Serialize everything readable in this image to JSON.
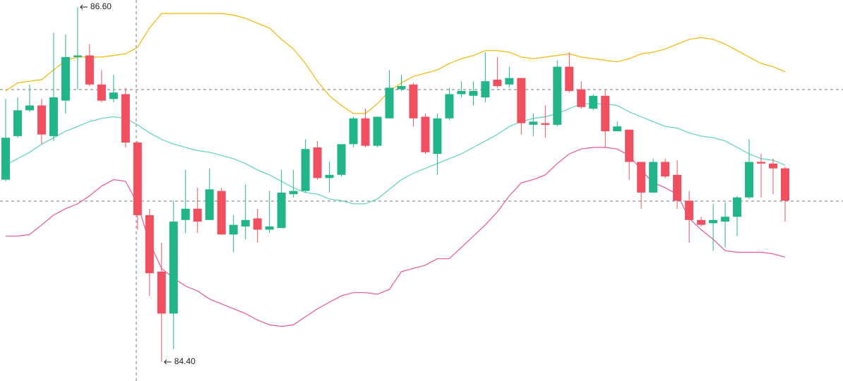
{
  "chart_data": {
    "type": "candlestick",
    "up_color": "#22b58a",
    "down_color": "#ef4f5f",
    "open": [
      85.53,
      85.8,
      85.96,
      85.99,
      85.8,
      86.02,
      86.29,
      86.3,
      86.12,
      86.03,
      86.06,
      85.76,
      85.31,
      84.96,
      84.7,
      85.28,
      85.35,
      85.28,
      85.46,
      85.19,
      85.24,
      85.29,
      85.22,
      85.23,
      85.44,
      85.46,
      85.73,
      85.54,
      85.56,
      85.75,
      85.91,
      85.74,
      85.91,
      86.09,
      86.12,
      85.92,
      85.69,
      85.91,
      86.06,
      86.05,
      86.04,
      86.15,
      86.12,
      86.16,
      85.87,
      85.88,
      85.87,
      86.23,
      86.09,
      85.97,
      86.05,
      85.83,
      85.84,
      85.64,
      85.45,
      85.64,
      85.56,
      85.4,
      85.28,
      85.26,
      85.27,
      85.3,
      85.42,
      85.64,
      85.63,
      85.6
    ],
    "high": [
      86.03,
      86.04,
      86.12,
      86.03,
      86.44,
      86.43,
      86.6,
      86.37,
      86.21,
      86.18,
      86.1,
      85.77,
      85.35,
      85.14,
      85.4,
      85.59,
      85.48,
      85.6,
      85.48,
      85.31,
      85.5,
      85.35,
      85.46,
      85.59,
      85.59,
      85.78,
      85.77,
      85.64,
      85.75,
      85.92,
      85.97,
      85.92,
      86.21,
      86.18,
      86.13,
      85.94,
      85.94,
      86.1,
      86.14,
      86.14,
      86.32,
      86.29,
      86.23,
      86.16,
      85.94,
      85.99,
      86.27,
      86.32,
      86.14,
      86.06,
      86.09,
      85.89,
      85.84,
      85.64,
      85.66,
      85.66,
      85.65,
      85.46,
      85.3,
      85.38,
      85.39,
      85.43,
      85.78,
      85.69,
      85.66,
      85.61
    ],
    "low": [
      85.52,
      85.79,
      85.95,
      85.75,
      85.77,
      85.94,
      86.09,
      86.11,
      86.01,
      86.01,
      85.73,
      85.22,
      84.81,
      84.4,
      84.48,
      85.2,
      85.2,
      85.28,
      85.19,
      85.08,
      85.16,
      85.14,
      85.2,
      85.23,
      85.42,
      85.45,
      85.53,
      85.45,
      85.55,
      85.73,
      85.73,
      85.73,
      85.91,
      86.08,
      85.86,
      85.69,
      85.56,
      85.9,
      86.04,
      85.99,
      86.01,
      86.1,
      86.1,
      85.81,
      85.8,
      85.79,
      85.86,
      86.07,
      85.97,
      85.96,
      85.73,
      85.83,
      85.53,
      85.35,
      85.45,
      85.54,
      85.35,
      85.14,
      85.24,
      85.09,
      85.11,
      85.18,
      85.41,
      85.42,
      85.44,
      85.27
    ],
    "close": [
      85.79,
      85.96,
      85.99,
      85.81,
      86.04,
      86.29,
      86.3,
      86.12,
      86.02,
      86.07,
      85.76,
      85.31,
      84.95,
      84.7,
      85.27,
      85.35,
      85.27,
      85.47,
      85.19,
      85.25,
      85.28,
      85.22,
      85.24,
      85.45,
      85.46,
      85.72,
      85.54,
      85.56,
      85.75,
      85.91,
      85.74,
      85.92,
      86.1,
      86.11,
      85.91,
      85.7,
      85.91,
      86.06,
      86.08,
      86.08,
      86.14,
      86.11,
      86.16,
      85.88,
      85.89,
      85.87,
      86.23,
      86.08,
      85.98,
      86.05,
      85.83,
      85.86,
      85.64,
      85.45,
      85.64,
      85.55,
      85.4,
      85.28,
      85.25,
      85.28,
      85.3,
      85.42,
      85.64,
      85.63,
      85.6,
      85.4
    ],
    "lines": [
      {
        "color": "#f2b705",
        "values": [
          86.08,
          86.13,
          86.14,
          86.15,
          86.21,
          86.27,
          86.29,
          86.29,
          86.29,
          86.3,
          86.31,
          86.35,
          86.47,
          86.56,
          86.56,
          86.56,
          86.56,
          86.56,
          86.56,
          86.55,
          86.53,
          86.5,
          86.47,
          86.4,
          86.34,
          86.25,
          86.14,
          86.05,
          85.99,
          85.94,
          85.94,
          86.0,
          86.08,
          86.13,
          86.17,
          86.19,
          86.21,
          86.25,
          86.28,
          86.3,
          86.33,
          86.33,
          86.32,
          86.29,
          86.28,
          86.29,
          86.3,
          86.31,
          86.29,
          86.28,
          86.27,
          86.26,
          86.28,
          86.31,
          86.32,
          86.34,
          86.37,
          86.4,
          86.41,
          86.4,
          86.37,
          86.33,
          86.29,
          86.25,
          86.23,
          86.2
        ]
      },
      {
        "color": "#5fd3c1",
        "values": [
          85.62,
          85.66,
          85.7,
          85.75,
          85.79,
          85.83,
          85.86,
          85.89,
          85.91,
          85.92,
          85.91,
          85.87,
          85.82,
          85.78,
          85.75,
          85.73,
          85.71,
          85.7,
          85.68,
          85.66,
          85.63,
          85.59,
          85.56,
          85.52,
          85.48,
          85.45,
          85.44,
          85.41,
          85.4,
          85.38,
          85.38,
          85.41,
          85.47,
          85.53,
          85.57,
          85.6,
          85.63,
          85.66,
          85.69,
          85.73,
          85.77,
          85.81,
          85.86,
          85.89,
          85.91,
          85.92,
          85.94,
          85.97,
          86.0,
          86.0,
          86.0,
          85.99,
          85.95,
          85.92,
          85.89,
          85.86,
          85.85,
          85.82,
          85.8,
          85.79,
          85.77,
          85.73,
          85.69,
          85.66,
          85.65,
          85.62
        ]
      },
      {
        "color": "#e7569c",
        "values": [
          85.18,
          85.18,
          85.19,
          85.25,
          85.31,
          85.35,
          85.38,
          85.43,
          85.49,
          85.53,
          85.52,
          85.38,
          85.14,
          84.98,
          84.92,
          84.87,
          84.84,
          84.79,
          84.76,
          84.73,
          84.7,
          84.66,
          84.63,
          84.62,
          84.63,
          84.68,
          84.73,
          84.77,
          84.81,
          84.83,
          84.83,
          84.82,
          84.85,
          84.96,
          84.98,
          85.0,
          85.04,
          85.04,
          85.11,
          85.18,
          85.25,
          85.33,
          85.43,
          85.51,
          85.53,
          85.56,
          85.63,
          85.69,
          85.72,
          85.73,
          85.73,
          85.72,
          85.68,
          85.59,
          85.51,
          85.48,
          85.44,
          85.29,
          85.22,
          85.16,
          85.09,
          85.08,
          85.08,
          85.08,
          85.07,
          85.05
        ]
      }
    ],
    "annotations": [
      {
        "value": 86.6,
        "label": "86.60"
      },
      {
        "value": 84.4,
        "label": "84.40"
      }
    ]
  }
}
